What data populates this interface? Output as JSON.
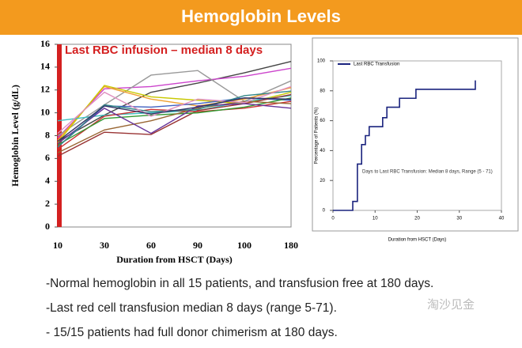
{
  "header": {
    "title": "Hemoglobin Levels"
  },
  "bullets": [
    "-Normal hemoglobin in all 15 patients, and transfusion free at 180 days.",
    "-Last red cell transfusion median 8 days (range 5-71).",
    "- 15/15 patients had full donor chimerism at 180 days."
  ],
  "watermark": "淘沙见金",
  "chart_data": [
    {
      "type": "line",
      "annotation": "Last RBC infusion – median 8 days",
      "x_label": "Duration from HSCT (Days)",
      "y_label": "Hemoglobin Level (g/dL)",
      "categories": [
        "10",
        "30",
        "60",
        "90",
        "100",
        "180"
      ],
      "ylim": [
        0,
        16
      ],
      "yticks": [
        0,
        2,
        4,
        6,
        8,
        10,
        12,
        14,
        16
      ],
      "series": [
        {
          "color": "#444444",
          "values": [
            7.5,
            9.8,
            11.8,
            12.6,
            13.5,
            14.5
          ]
        },
        {
          "color": "#cc44cc",
          "values": [
            7.8,
            12.1,
            12.3,
            12.8,
            13.2,
            13.9
          ]
        },
        {
          "color": "#999999",
          "values": [
            8.0,
            10.7,
            13.3,
            13.7,
            11.0,
            12.8
          ]
        },
        {
          "color": "#f0a030",
          "values": [
            7.6,
            12.3,
            11.2,
            10.6,
            11.2,
            12.2
          ]
        },
        {
          "color": "#c8c800",
          "values": [
            7.4,
            12.4,
            11.4,
            11.1,
            10.8,
            11.8
          ]
        },
        {
          "color": "#40c0c0",
          "values": [
            9.3,
            9.8,
            10.0,
            10.2,
            11.0,
            11.5
          ]
        },
        {
          "color": "#4060c0",
          "values": [
            7.0,
            10.6,
            10.5,
            10.8,
            11.3,
            11.1
          ]
        },
        {
          "color": "#993333",
          "values": [
            6.2,
            8.3,
            8.1,
            10.2,
            10.8,
            11.6
          ]
        },
        {
          "color": "#cc3333",
          "values": [
            6.8,
            9.7,
            10.3,
            10.1,
            10.4,
            11.0
          ]
        },
        {
          "color": "#339933",
          "values": [
            7.2,
            9.5,
            9.8,
            10.0,
            10.5,
            11.3
          ]
        },
        {
          "color": "#996633",
          "values": [
            6.5,
            8.5,
            9.3,
            10.4,
            11.0,
            10.8
          ]
        },
        {
          "color": "#663399",
          "values": [
            7.3,
            10.4,
            8.2,
            10.6,
            10.8,
            10.4
          ]
        },
        {
          "color": "#338888",
          "values": [
            7.0,
            10.7,
            10.1,
            10.3,
            11.5,
            11.9
          ]
        },
        {
          "color": "#e090c0",
          "values": [
            8.2,
            11.8,
            9.7,
            11.2,
            10.9,
            12.3
          ]
        },
        {
          "color": "#333366",
          "values": [
            7.5,
            10.6,
            9.9,
            10.5,
            11.3,
            11.2
          ]
        }
      ]
    },
    {
      "type": "line",
      "step": true,
      "annotation": "Days to Last RBC Transfusion: Median 8 days, Range (5 - 71)",
      "x_label": "Duration from HSCT (Days)",
      "y_label": "Percentage of Patients (%)",
      "xlim": [
        0,
        40
      ],
      "xticks": [
        0,
        10,
        20,
        30,
        40
      ],
      "ylim": [
        0,
        100
      ],
      "yticks": [
        0,
        20,
        40,
        60,
        80,
        100
      ],
      "series": [
        {
          "name": "Last RBC Transfusion",
          "color": "#1a237e",
          "x": [
            0,
            4.7,
            5.8,
            6.8,
            7.7,
            8.6,
            11.8,
            12.8,
            15.8,
            19.7,
            33.8
          ],
          "values": [
            0,
            6,
            31,
            44,
            50,
            56,
            62,
            69,
            75,
            81,
            87
          ]
        }
      ]
    }
  ]
}
